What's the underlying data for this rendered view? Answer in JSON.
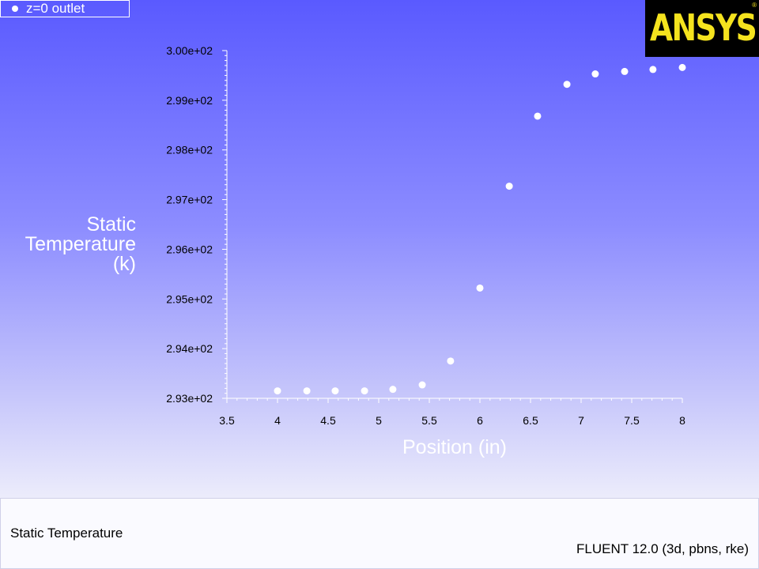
{
  "legend": {
    "label": "z=0  outlet"
  },
  "logo": {
    "text": "ANSYS",
    "mark": "®"
  },
  "footer": {
    "left_text": "Static Temperature",
    "right_text": "FLUENT 12.0 (3d, pbns, rke)"
  },
  "colors": {
    "accent_logo": "#f5e31e",
    "marker": "#ffffff"
  },
  "chart_data": {
    "type": "scatter",
    "title": "",
    "xlabel": "Position (in)",
    "ylabel_lines": [
      "Static",
      "Temperature",
      "(k)"
    ],
    "xlim": [
      3.5,
      8.0
    ],
    "ylim": [
      293.0,
      300.0
    ],
    "x_ticks": [
      3.5,
      4.0,
      4.5,
      5.0,
      5.5,
      6.0,
      6.5,
      7.0,
      7.5,
      8.0
    ],
    "x_tick_labels": [
      "3.5",
      "4",
      "4.5",
      "5",
      "5.5",
      "6",
      "6.5",
      "7",
      "7.5",
      "8"
    ],
    "y_ticks": [
      293.0,
      294.0,
      295.0,
      296.0,
      297.0,
      298.0,
      299.0,
      300.0
    ],
    "y_tick_labels": [
      "2.93e+02",
      "2.94e+02",
      "2.95e+02",
      "2.96e+02",
      "2.97e+02",
      "2.98e+02",
      "2.99e+02",
      "3.00e+02"
    ],
    "grid": false,
    "legend_position": "top-left",
    "series": [
      {
        "name": "z=0  outlet",
        "x": [
          4.0,
          4.29,
          4.57,
          4.86,
          5.14,
          5.43,
          5.71,
          6.0,
          6.29,
          6.57,
          6.86,
          7.14,
          7.43,
          7.71,
          8.0
        ],
        "y": [
          293.15,
          293.15,
          293.15,
          293.15,
          293.18,
          293.27,
          293.75,
          295.22,
          297.27,
          298.68,
          299.32,
          299.53,
          299.58,
          299.62,
          299.66
        ]
      }
    ]
  }
}
